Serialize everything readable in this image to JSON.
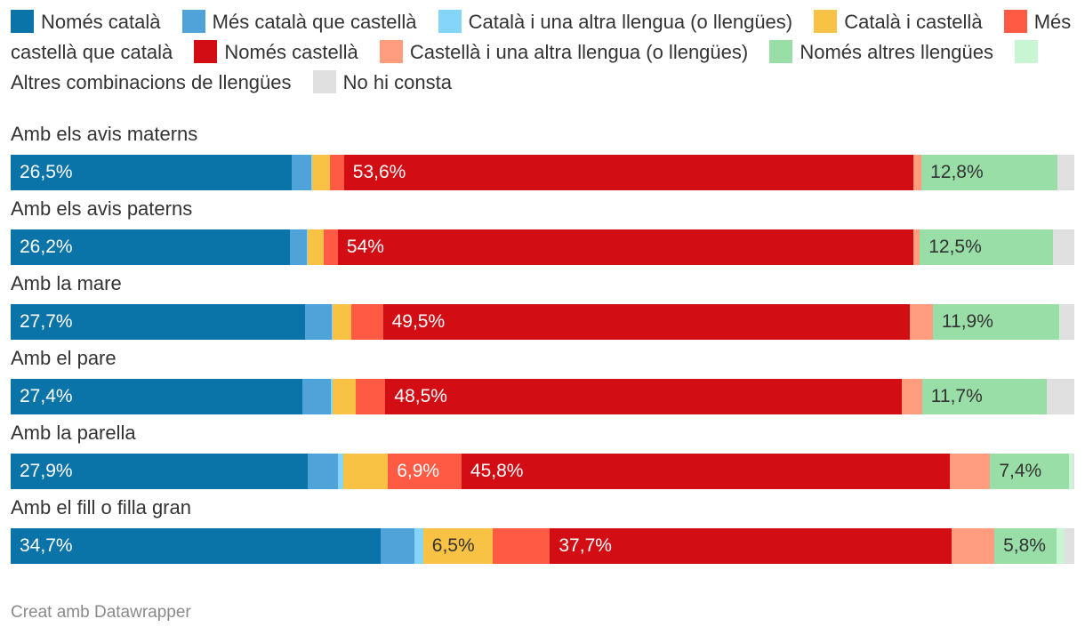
{
  "chart_data": {
    "type": "bar",
    "orientation": "horizontal",
    "stacked": true,
    "stacked_to_100_percent": true,
    "value_suffix": "%",
    "categories": [
      "Amb els avis materns",
      "Amb els avis paterns",
      "Amb la mare",
      "Amb el pare",
      "Amb la parella",
      "Amb el fill o filla gran"
    ],
    "series": [
      {
        "name": "Només català",
        "color": "#0a73a8",
        "values": [
          26.5,
          26.2,
          27.7,
          27.4,
          27.9,
          34.7
        ],
        "labels": [
          "26,5%",
          "26,2%",
          "27,7%",
          "27,4%",
          "27,9%",
          "34,7%"
        ],
        "label_color": "#ffffff"
      },
      {
        "name": "Més català que castellà",
        "color": "#4fa3d8",
        "values": [
          1.8,
          1.6,
          2.5,
          2.7,
          2.8,
          3.2
        ],
        "labels": [
          null,
          null,
          null,
          null,
          null,
          null
        ],
        "label_color": "#ffffff"
      },
      {
        "name": "Català i una altra llengua (o llengües)",
        "color": "#85d4fa",
        "values": [
          0.1,
          0.1,
          0.1,
          0.1,
          0.5,
          0.8
        ],
        "labels": [
          null,
          null,
          null,
          null,
          null,
          null
        ],
        "label_color": "#333333"
      },
      {
        "name": "Català i castellà",
        "color": "#f8c244",
        "values": [
          1.7,
          1.5,
          1.7,
          2.2,
          4.2,
          6.5
        ],
        "labels": [
          null,
          null,
          null,
          null,
          null,
          "6,5%"
        ],
        "label_color": "#333333"
      },
      {
        "name": "Més castellà que català",
        "color": "#ff5a44",
        "values": [
          1.3,
          1.3,
          3.0,
          2.8,
          6.9,
          5.4
        ],
        "labels": [
          null,
          null,
          null,
          null,
          "6,9%",
          null
        ],
        "label_color": "#ffffff"
      },
      {
        "name": "Només castellà",
        "color": "#d20d14",
        "values": [
          53.6,
          54.0,
          49.5,
          48.5,
          45.8,
          37.7
        ],
        "labels": [
          "53,6%",
          "54%",
          "49,5%",
          "48,5%",
          "45,8%",
          "37,7%"
        ],
        "label_color": "#ffffff"
      },
      {
        "name": "Castellà i una altra llengua (o llengües)",
        "color": "#ff9d7e",
        "values": [
          0.8,
          0.6,
          2.2,
          1.9,
          3.8,
          4.0
        ],
        "labels": [
          null,
          null,
          null,
          null,
          null,
          null
        ],
        "label_color": "#333333"
      },
      {
        "name": "Només altres llengües",
        "color": "#98dea6",
        "values": [
          12.8,
          12.5,
          11.9,
          11.7,
          7.4,
          5.8
        ],
        "labels": [
          "12,8%",
          "12,5%",
          "11,9%",
          "11,7%",
          "7,4%",
          "5,8%"
        ],
        "label_color": "#333333"
      },
      {
        "name": "Altres combinacions de llengües",
        "color": "#c8f6d2",
        "values": [
          0.0,
          0.0,
          0.1,
          0.0,
          0.3,
          0.8
        ],
        "labels": [
          null,
          null,
          null,
          null,
          null,
          null
        ],
        "label_color": "#333333"
      },
      {
        "name": "No hi consta",
        "color": "#e0e0e0",
        "values": [
          1.6,
          2.0,
          1.3,
          2.6,
          0.2,
          0.9
        ],
        "labels": [
          null,
          null,
          null,
          null,
          null,
          null
        ],
        "label_color": "#333333"
      }
    ],
    "legend_position": "top",
    "xlim": [
      0,
      100
    ],
    "grid": false
  },
  "credit": "Creat amb Datawrapper"
}
